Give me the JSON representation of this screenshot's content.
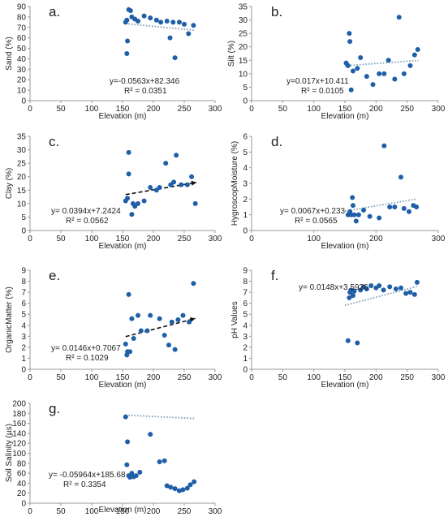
{
  "colors": {
    "points": "#1f5fa8",
    "trend_dotted": "#7f9fb5",
    "trend_dashed": "#111111",
    "axis": "#999999",
    "text": "#222222"
  },
  "chart_data": [
    {
      "type": "scatter",
      "panel_label": "a.",
      "xlabel": "Elevation (m)",
      "ylabel": "Sand (%)",
      "xlim": [
        0,
        300
      ],
      "ylim": [
        0,
        90
      ],
      "x_ticks": [
        "0",
        "50",
        "100",
        "150",
        "200",
        "250",
        "300"
      ],
      "y_ticks": [
        "0",
        "10",
        "20",
        "30",
        "40",
        "50",
        "60",
        "70",
        "80",
        "90"
      ],
      "equation": "y=-0.0563x+82.346",
      "r_squared": "R² = 0.0351",
      "trend_style": "dotted",
      "trend_x": [
        155,
        268
      ],
      "points": [
        [
          155,
          75
        ],
        [
          157,
          77
        ],
        [
          158,
          57
        ],
        [
          157,
          45
        ],
        [
          160,
          87
        ],
        [
          163,
          86
        ],
        [
          165,
          80
        ],
        [
          170,
          78
        ],
        [
          175,
          76
        ],
        [
          185,
          81
        ],
        [
          195,
          79
        ],
        [
          205,
          77
        ],
        [
          212,
          75
        ],
        [
          222,
          76
        ],
        [
          227,
          60
        ],
        [
          232,
          75
        ],
        [
          235,
          41
        ],
        [
          242,
          75
        ],
        [
          250,
          73
        ],
        [
          257,
          64
        ],
        [
          265,
          72
        ]
      ]
    },
    {
      "type": "scatter",
      "panel_label": "b.",
      "xlabel": "Elevation (m)",
      "ylabel": "Silt (%)",
      "xlim": [
        0,
        300
      ],
      "ylim": [
        0,
        35
      ],
      "x_ticks": [
        "0",
        "50",
        "100",
        "150",
        "200",
        "250",
        "300"
      ],
      "y_ticks": [
        "0",
        "5",
        "10",
        "15",
        "20",
        "25",
        "30",
        "35"
      ],
      "equation": "y=0.017x+10.411",
      "r_squared": "R² = 0.0105",
      "trend_style": "dotted",
      "trend_x": [
        150,
        268
      ],
      "points": [
        [
          152,
          14
        ],
        [
          155,
          13
        ],
        [
          157,
          25
        ],
        [
          158,
          22
        ],
        [
          160,
          4
        ],
        [
          163,
          11
        ],
        [
          170,
          12
        ],
        [
          175,
          16
        ],
        [
          185,
          9
        ],
        [
          195,
          6
        ],
        [
          205,
          10
        ],
        [
          213,
          10
        ],
        [
          220,
          15
        ],
        [
          230,
          8
        ],
        [
          237,
          31
        ],
        [
          245,
          10
        ],
        [
          255,
          13
        ],
        [
          262,
          17
        ],
        [
          267,
          19
        ]
      ]
    },
    {
      "type": "scatter",
      "panel_label": "c.",
      "xlabel": "Elevation (m)",
      "ylabel": "Clay (%)",
      "xlim": [
        0,
        300
      ],
      "ylim": [
        0,
        35
      ],
      "x_ticks": [
        "0",
        "50",
        "100",
        "150",
        "200",
        "250",
        "300"
      ],
      "y_ticks": [
        "0",
        "5",
        "10",
        "15",
        "20",
        "25",
        "30",
        "35"
      ],
      "equation": "y= 0.0394x+7.2424",
      "r_squared": "R² = 0.0562",
      "trend_style": "dashed",
      "trend_x": [
        155,
        270
      ],
      "points": [
        [
          155,
          11
        ],
        [
          158,
          12
        ],
        [
          160,
          29
        ],
        [
          160,
          21
        ],
        [
          165,
          6
        ],
        [
          167,
          10
        ],
        [
          170,
          9
        ],
        [
          175,
          10
        ],
        [
          185,
          11
        ],
        [
          195,
          16
        ],
        [
          205,
          15
        ],
        [
          210,
          16
        ],
        [
          220,
          25
        ],
        [
          228,
          17
        ],
        [
          233,
          18
        ],
        [
          237,
          28
        ],
        [
          245,
          17
        ],
        [
          255,
          17
        ],
        [
          262,
          20
        ],
        [
          268,
          10
        ]
      ]
    },
    {
      "type": "scatter",
      "panel_label": "d.",
      "xlabel": "Elevation (m)",
      "ylabel": "HygroscopMoisture (%)",
      "xlim": [
        0,
        300
      ],
      "ylim": [
        0,
        6
      ],
      "x_ticks": [
        "0",
        "100",
        "200",
        "300"
      ],
      "y_ticks": [
        "0",
        "1",
        "2",
        "3",
        "4",
        "5",
        "6"
      ],
      "equation": "y= 0.0067x+0.233",
      "r_squared": "R² = 0.0565",
      "trend_style": "dotted",
      "trend_x": [
        150,
        265
      ],
      "points": [
        [
          155,
          1.0
        ],
        [
          158,
          1.2
        ],
        [
          160,
          1.0
        ],
        [
          162,
          2.1
        ],
        [
          163,
          1.6
        ],
        [
          165,
          1.0
        ],
        [
          168,
          0.6
        ],
        [
          172,
          1.0
        ],
        [
          180,
          1.3
        ],
        [
          190,
          0.9
        ],
        [
          205,
          0.8
        ],
        [
          213,
          5.4
        ],
        [
          222,
          1.5
        ],
        [
          230,
          1.5
        ],
        [
          240,
          3.4
        ],
        [
          245,
          1.4
        ],
        [
          253,
          1.2
        ],
        [
          260,
          1.6
        ],
        [
          265,
          1.5
        ]
      ]
    },
    {
      "type": "scatter",
      "panel_label": "e.",
      "xlabel": "Elevation (m)",
      "ylabel": "OrganicMatter (%)",
      "xlim": [
        0,
        300
      ],
      "ylim": [
        0,
        9
      ],
      "x_ticks": [
        "0",
        "50",
        "100",
        "150",
        "200",
        "250",
        "300"
      ],
      "y_ticks": [
        "0",
        "1",
        "2",
        "3",
        "4",
        "5",
        "6",
        "7",
        "8",
        "9"
      ],
      "equation": "y= 0.0146x+0.7067",
      "r_squared": "R² = 0.1029",
      "trend_style": "dashed",
      "trend_x": [
        155,
        268
      ],
      "points": [
        [
          155,
          2.3
        ],
        [
          157,
          1.3
        ],
        [
          158,
          1.6
        ],
        [
          160,
          6.8
        ],
        [
          162,
          1.6
        ],
        [
          165,
          4.6
        ],
        [
          168,
          2.8
        ],
        [
          175,
          4.9
        ],
        [
          180,
          3.5
        ],
        [
          190,
          3.5
        ],
        [
          195,
          4.9
        ],
        [
          210,
          4.6
        ],
        [
          218,
          3.1
        ],
        [
          225,
          2.2
        ],
        [
          230,
          4.3
        ],
        [
          235,
          1.8
        ],
        [
          240,
          4.5
        ],
        [
          248,
          4.9
        ],
        [
          258,
          4.3
        ],
        [
          265,
          7.8
        ]
      ]
    },
    {
      "type": "scatter",
      "panel_label": "f.",
      "xlabel": "Elevation (m)",
      "ylabel": "pH Values",
      "xlim": [
        0,
        300
      ],
      "ylim": [
        0,
        9
      ],
      "x_ticks": [
        "0",
        "50",
        "100",
        "150",
        "200",
        "250",
        "300"
      ],
      "y_ticks": [
        "0",
        "1",
        "2",
        "3",
        "4",
        "5",
        "6",
        "7",
        "8",
        "9"
      ],
      "equation": "y= 0.0148x+3.5926",
      "r_squared": "",
      "trend_style": "dotted",
      "trend_x": [
        150,
        268
      ],
      "points": [
        [
          155,
          2.6
        ],
        [
          157,
          6.5
        ],
        [
          158,
          7.0
        ],
        [
          160,
          7.2
        ],
        [
          163,
          6.7
        ],
        [
          165,
          7.1
        ],
        [
          170,
          2.4
        ],
        [
          175,
          7.2
        ],
        [
          180,
          7.5
        ],
        [
          185,
          7.3
        ],
        [
          192,
          7.6
        ],
        [
          200,
          7.4
        ],
        [
          205,
          7.6
        ],
        [
          212,
          7.2
        ],
        [
          222,
          7.5
        ],
        [
          232,
          7.3
        ],
        [
          240,
          7.4
        ],
        [
          248,
          6.9
        ],
        [
          255,
          7.0
        ],
        [
          262,
          6.8
        ],
        [
          266,
          7.9
        ]
      ]
    },
    {
      "type": "scatter",
      "panel_label": "g.",
      "xlabel": "Elevation (m)",
      "ylabel": "Soil Salinity (µs)",
      "xlim": [
        0,
        300
      ],
      "ylim": [
        0,
        200
      ],
      "x_ticks": [
        "0",
        "50",
        "100",
        "150",
        "200",
        "250",
        "300"
      ],
      "y_ticks": [
        "0",
        "20",
        "40",
        "60",
        "80",
        "100",
        "120",
        "140",
        "160",
        "180",
        "200"
      ],
      "equation": "y= -0.05964x+185.68",
      "r_squared": "R² = 0.3354",
      "trend_style": "dotted",
      "trend_x": [
        155,
        268
      ],
      "points": [
        [
          155,
          173
        ],
        [
          157,
          77
        ],
        [
          158,
          123
        ],
        [
          160,
          55
        ],
        [
          162,
          52
        ],
        [
          165,
          60
        ],
        [
          168,
          53
        ],
        [
          172,
          55
        ],
        [
          178,
          62
        ],
        [
          195,
          138
        ],
        [
          210,
          83
        ],
        [
          218,
          85
        ],
        [
          222,
          35
        ],
        [
          228,
          32
        ],
        [
          235,
          29
        ],
        [
          242,
          25
        ],
        [
          248,
          27
        ],
        [
          255,
          30
        ],
        [
          260,
          37
        ],
        [
          266,
          43
        ]
      ]
    }
  ]
}
